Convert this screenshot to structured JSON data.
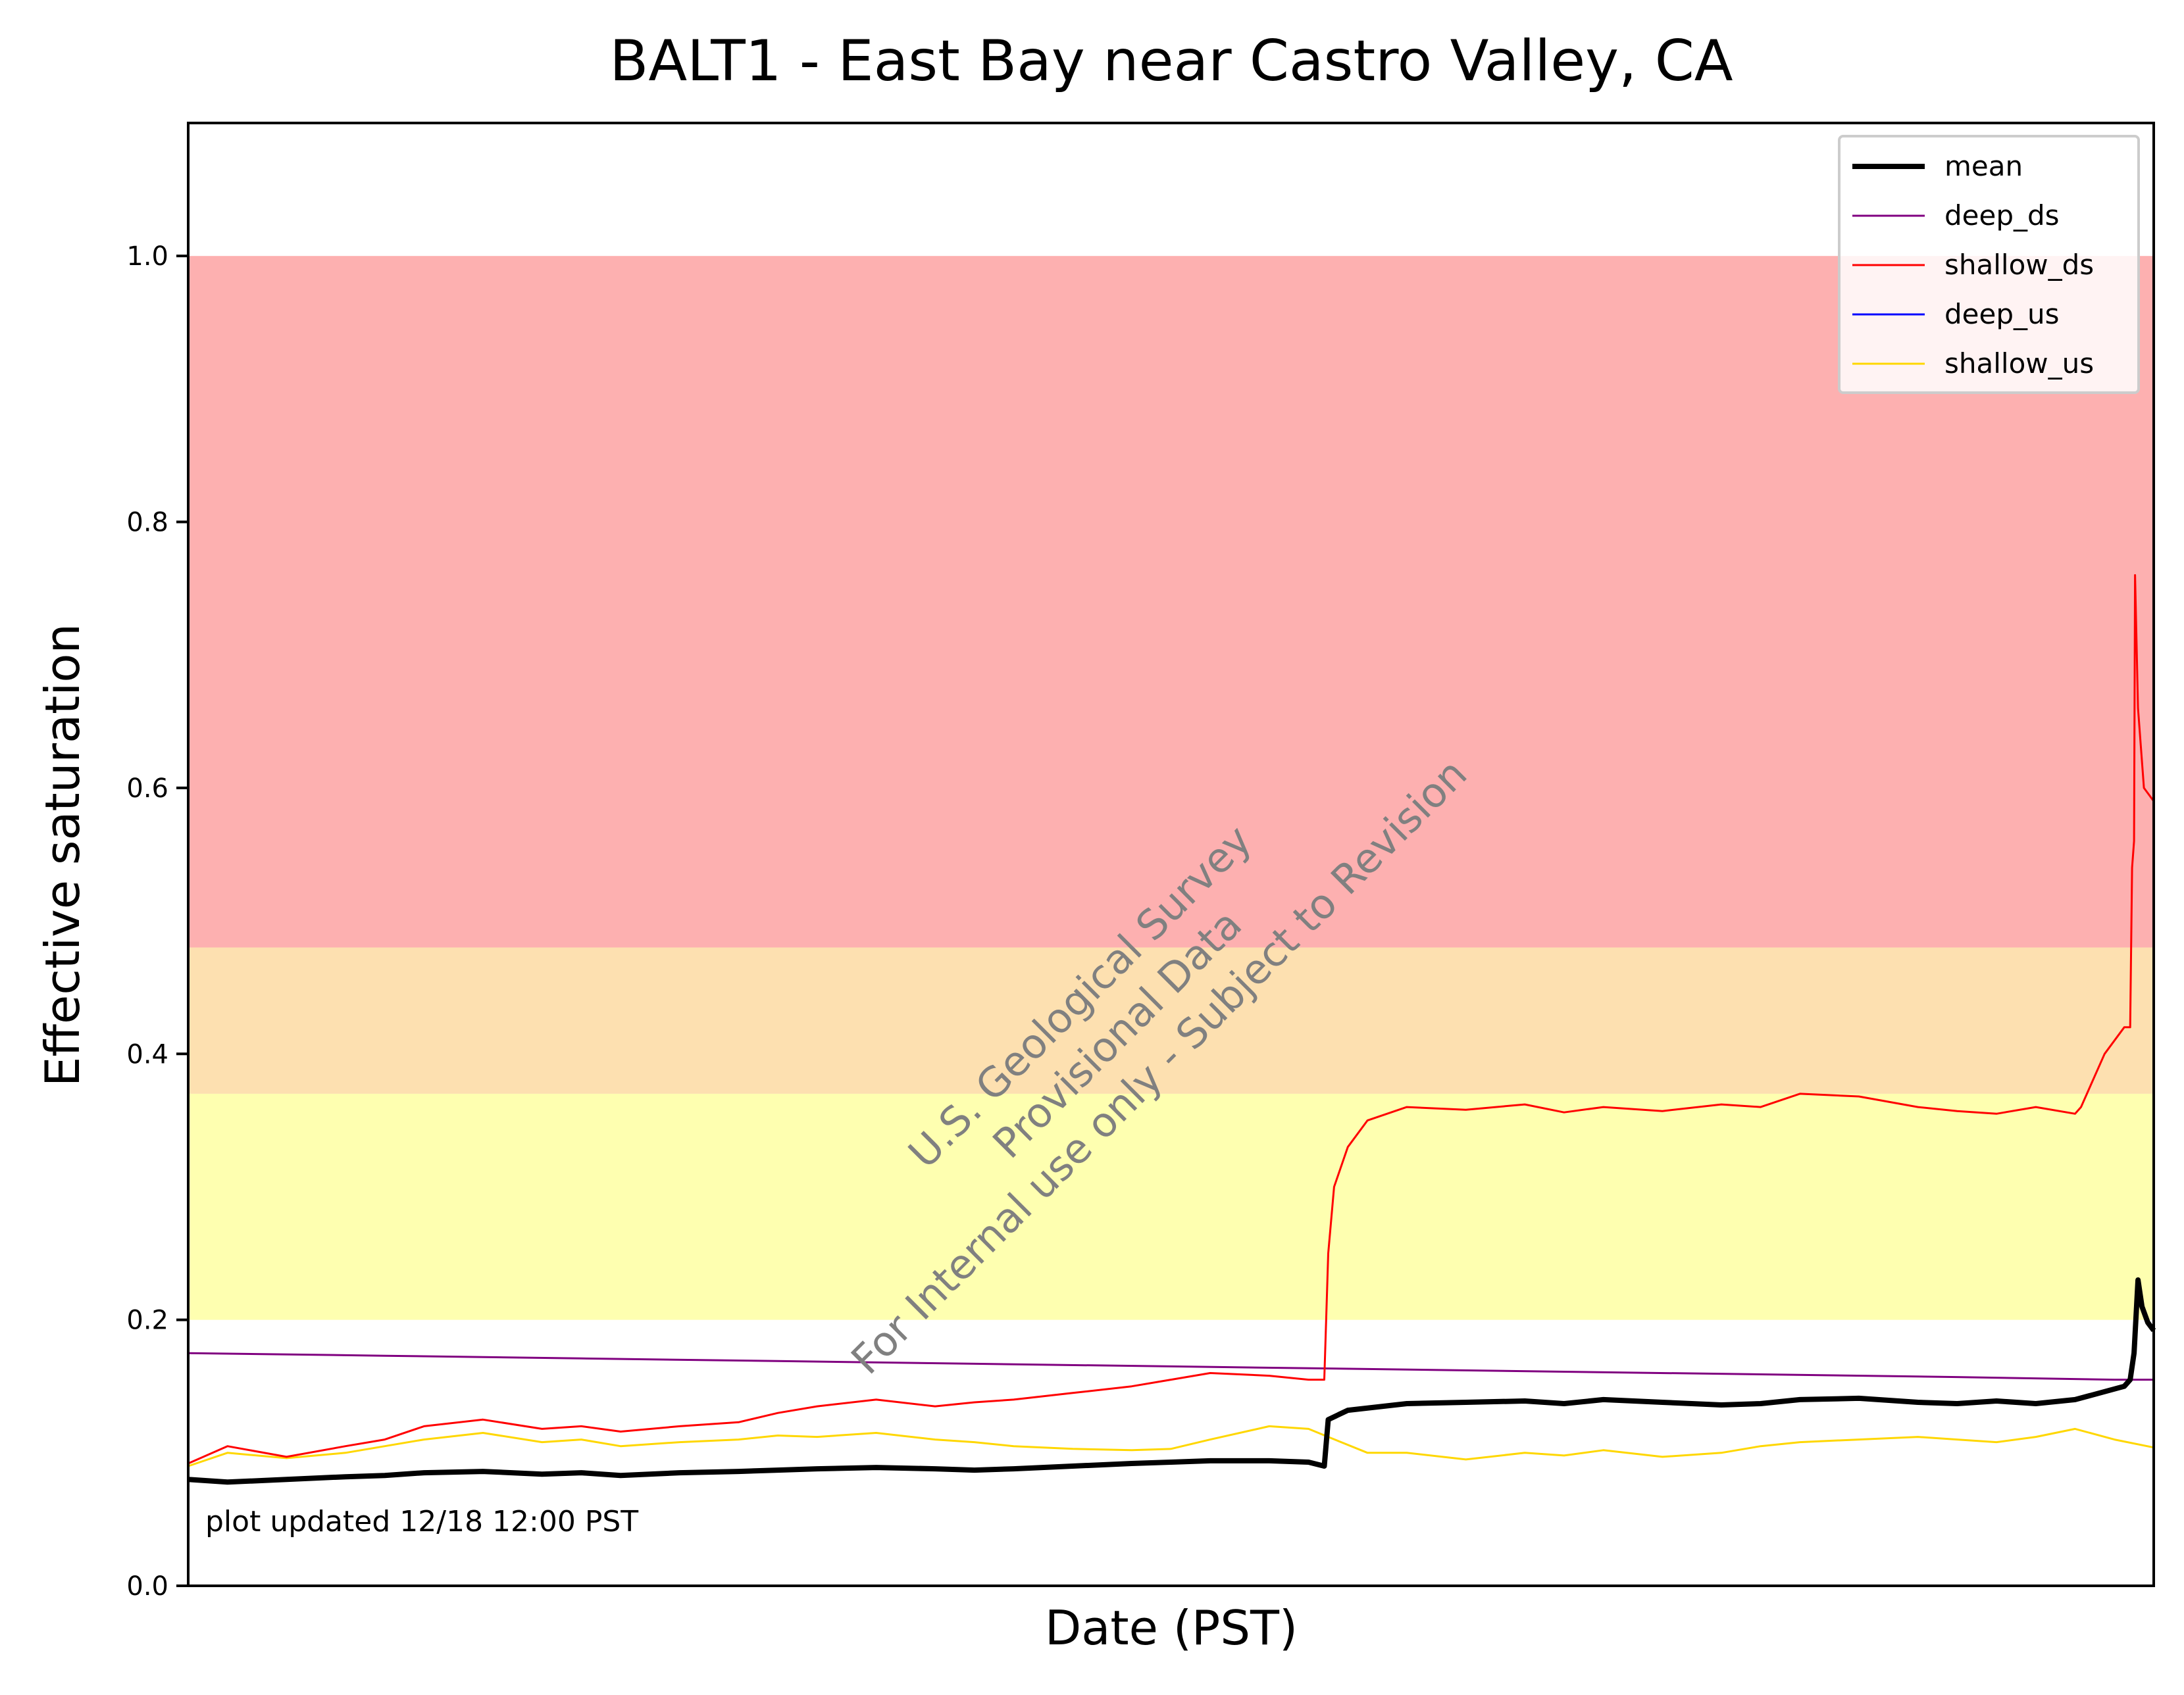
{
  "chart_data": {
    "type": "line",
    "title": "BALT1 - East Bay near Castro Valley, CA",
    "xlabel": "Date (PST)",
    "ylabel": "Effective saturation",
    "ylim": [
      0,
      1.1
    ],
    "yticks": [
      0.0,
      0.2,
      0.4,
      0.6,
      0.8,
      1.0
    ],
    "ytick_labels": [
      "0.0",
      "0.2",
      "0.4",
      "0.6",
      "0.8",
      "1.0"
    ],
    "xticks_shown": false,
    "grid": false,
    "legend": "top-right",
    "annotation": "plot updated 12/18 12:00  PST",
    "watermark": [
      "U.S. Geological Survey",
      "Provisional Data",
      "For Internal use only - Subject to Revision"
    ],
    "bands": [
      {
        "from": 0.48,
        "to": 1.0,
        "color": "#fdb0b0"
      },
      {
        "from": 0.37,
        "to": 0.48,
        "color": "#fde0b0"
      },
      {
        "from": 0.2,
        "to": 0.37,
        "color": "#feffb0"
      }
    ],
    "series": [
      {
        "name": "mean",
        "color": "#000000",
        "width": 3,
        "x": [
          0,
          0.02,
          0.05,
          0.08,
          0.1,
          0.12,
          0.15,
          0.18,
          0.2,
          0.22,
          0.25,
          0.28,
          0.3,
          0.32,
          0.35,
          0.38,
          0.4,
          0.42,
          0.45,
          0.48,
          0.5,
          0.52,
          0.55,
          0.57,
          0.578,
          0.58,
          0.59,
          0.62,
          0.65,
          0.68,
          0.7,
          0.72,
          0.75,
          0.78,
          0.8,
          0.82,
          0.85,
          0.88,
          0.9,
          0.92,
          0.94,
          0.96,
          0.985,
          0.988,
          0.99,
          0.992,
          0.994,
          0.997,
          1.0
        ],
        "y": [
          0.08,
          0.078,
          0.08,
          0.082,
          0.083,
          0.085,
          0.086,
          0.084,
          0.085,
          0.083,
          0.085,
          0.086,
          0.087,
          0.088,
          0.089,
          0.088,
          0.087,
          0.088,
          0.09,
          0.092,
          0.093,
          0.094,
          0.094,
          0.093,
          0.09,
          0.125,
          0.132,
          0.137,
          0.138,
          0.139,
          0.137,
          0.14,
          0.138,
          0.136,
          0.137,
          0.14,
          0.141,
          0.138,
          0.137,
          0.139,
          0.137,
          0.14,
          0.15,
          0.155,
          0.175,
          0.23,
          0.21,
          0.198,
          0.192
        ]
      },
      {
        "name": "deep_ds",
        "color": "#800080",
        "width": 1,
        "x": [
          0,
          0.1,
          0.2,
          0.3,
          0.4,
          0.5,
          0.6,
          0.7,
          0.8,
          0.9,
          0.98,
          1.0
        ],
        "y": [
          0.175,
          0.173,
          0.171,
          0.169,
          0.167,
          0.165,
          0.163,
          0.161,
          0.159,
          0.157,
          0.155,
          0.155
        ]
      },
      {
        "name": "shallow_ds",
        "color": "#ff0000",
        "width": 1,
        "x": [
          0,
          0.02,
          0.05,
          0.08,
          0.1,
          0.12,
          0.15,
          0.18,
          0.2,
          0.22,
          0.25,
          0.28,
          0.3,
          0.32,
          0.35,
          0.38,
          0.4,
          0.42,
          0.45,
          0.48,
          0.5,
          0.52,
          0.55,
          0.57,
          0.578,
          0.58,
          0.583,
          0.59,
          0.6,
          0.62,
          0.65,
          0.68,
          0.7,
          0.72,
          0.75,
          0.78,
          0.8,
          0.82,
          0.85,
          0.88,
          0.9,
          0.92,
          0.94,
          0.96,
          0.963,
          0.975,
          0.985,
          0.987,
          0.988,
          0.989,
          0.99,
          0.9905,
          0.992,
          0.995,
          1.0
        ],
        "y": [
          0.092,
          0.105,
          0.097,
          0.105,
          0.11,
          0.12,
          0.125,
          0.118,
          0.12,
          0.116,
          0.12,
          0.123,
          0.13,
          0.135,
          0.14,
          0.135,
          0.138,
          0.14,
          0.145,
          0.15,
          0.155,
          0.16,
          0.158,
          0.155,
          0.155,
          0.25,
          0.3,
          0.33,
          0.35,
          0.36,
          0.358,
          0.362,
          0.356,
          0.36,
          0.357,
          0.362,
          0.36,
          0.37,
          0.368,
          0.36,
          0.357,
          0.355,
          0.36,
          0.355,
          0.36,
          0.4,
          0.42,
          0.42,
          0.42,
          0.54,
          0.56,
          0.76,
          0.66,
          0.6,
          0.59
        ]
      },
      {
        "name": "deep_us",
        "color": "#0000ff",
        "width": 1,
        "x": [],
        "y": []
      },
      {
        "name": "shallow_us",
        "color": "#ffd700",
        "width": 1,
        "x": [
          0,
          0.02,
          0.05,
          0.08,
          0.1,
          0.12,
          0.15,
          0.18,
          0.2,
          0.22,
          0.25,
          0.28,
          0.3,
          0.32,
          0.35,
          0.38,
          0.4,
          0.42,
          0.45,
          0.48,
          0.5,
          0.52,
          0.55,
          0.57,
          0.58,
          0.6,
          0.62,
          0.65,
          0.68,
          0.7,
          0.72,
          0.75,
          0.78,
          0.8,
          0.82,
          0.85,
          0.88,
          0.9,
          0.92,
          0.94,
          0.96,
          0.98,
          1.0
        ],
        "y": [
          0.09,
          0.1,
          0.096,
          0.1,
          0.105,
          0.11,
          0.115,
          0.108,
          0.11,
          0.105,
          0.108,
          0.11,
          0.113,
          0.112,
          0.115,
          0.11,
          0.108,
          0.105,
          0.103,
          0.102,
          0.103,
          0.11,
          0.12,
          0.118,
          0.112,
          0.1,
          0.1,
          0.095,
          0.1,
          0.098,
          0.102,
          0.097,
          0.1,
          0.105,
          0.108,
          0.11,
          0.112,
          0.11,
          0.108,
          0.112,
          0.118,
          0.11,
          0.104
        ]
      }
    ]
  }
}
